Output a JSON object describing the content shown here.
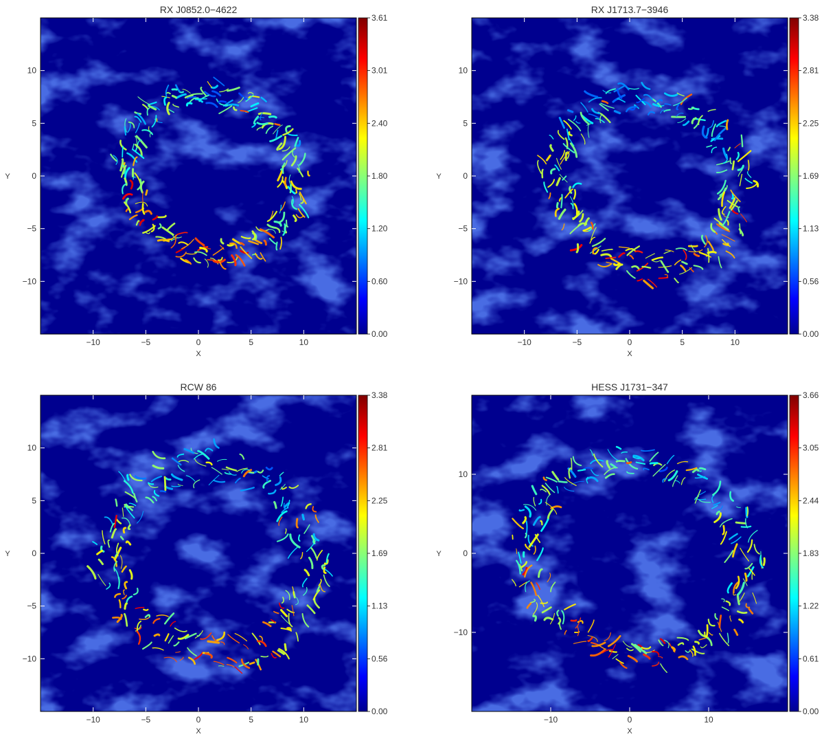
{
  "chart_data": [
    {
      "type": "heatmap",
      "title": "RX J0852.0−4622",
      "xlabel": "X",
      "ylabel": "Y",
      "xlim": [
        -15,
        15
      ],
      "ylim": [
        -15,
        15
      ],
      "xticks": [
        -10,
        -5,
        0,
        5,
        10
      ],
      "xtick_labels": [
        "−10",
        "−5",
        "0",
        "5",
        "10"
      ],
      "yticks": [
        -10,
        -5,
        0,
        5,
        10
      ],
      "ytick_labels": [
        "−10",
        "−5",
        "0",
        "5",
        "10"
      ],
      "colorbar": {
        "min": 0.0,
        "max": 3.61,
        "labels": [
          "0.00",
          "0.60",
          "1.20",
          "1.80",
          "2.40",
          "3.01",
          "3.61"
        ]
      },
      "shell": {
        "center": [
          1.3,
          0.2
        ],
        "radius_x": 7.9,
        "radius_y": 7.4,
        "thickness": 1.6,
        "tilt": -10,
        "peak": 0.9
      },
      "grid": false,
      "colormap": "jet"
    },
    {
      "type": "heatmap",
      "title": "RX J1713.7−3946",
      "xlabel": "X",
      "ylabel": "Y",
      "xlim": [
        -15,
        15
      ],
      "ylim": [
        -15,
        15
      ],
      "xticks": [
        -10,
        -5,
        0,
        5,
        10
      ],
      "xtick_labels": [
        "−10",
        "−5",
        "0",
        "5",
        "10"
      ],
      "yticks": [
        -10,
        -5,
        0,
        5,
        10
      ],
      "ytick_labels": [
        "−10",
        "−5",
        "0",
        "5",
        "10"
      ],
      "colorbar": {
        "min": 0.0,
        "max": 3.38,
        "labels": [
          "0.00",
          "0.56",
          "1.13",
          "1.69",
          "2.25",
          "2.81",
          "3.38"
        ]
      },
      "shell": {
        "center": [
          1.8,
          -0.6
        ],
        "radius_x": 8.7,
        "radius_y": 8.0,
        "thickness": 2.0,
        "tilt": -5,
        "peak": 0.88
      },
      "grid": false,
      "colormap": "jet"
    },
    {
      "type": "heatmap",
      "title": "RCW 86",
      "xlabel": "X",
      "ylabel": "Y",
      "xlim": [
        -15,
        15
      ],
      "ylim": [
        -15,
        15
      ],
      "xticks": [
        -10,
        -5,
        0,
        5,
        10
      ],
      "xtick_labels": [
        "−10",
        "−5",
        "0",
        "5",
        "10"
      ],
      "yticks": [
        -10,
        -5,
        0,
        5,
        10
      ],
      "ytick_labels": [
        "−10",
        "−5",
        "0",
        "5",
        "10"
      ],
      "colorbar": {
        "min": 0.0,
        "max": 3.38,
        "labels": [
          "0.00",
          "0.56",
          "1.13",
          "1.69",
          "2.25",
          "2.81",
          "3.38"
        ]
      },
      "shell": {
        "center": [
          1.2,
          -0.5
        ],
        "radius_x": 9.5,
        "radius_y": 8.9,
        "thickness": 2.2,
        "tilt": -5,
        "peak": 0.88
      },
      "grid": false,
      "colormap": "jet"
    },
    {
      "type": "heatmap",
      "title": "HESS J1731−347",
      "xlabel": "X",
      "ylabel": "Y",
      "xlim": [
        -20,
        20
      ],
      "ylim": [
        -20,
        20
      ],
      "xticks": [
        -10,
        0,
        10
      ],
      "xtick_labels": [
        "−10",
        "0",
        "10"
      ],
      "yticks": [
        -10,
        0,
        10
      ],
      "ytick_labels": [
        "−10",
        "0",
        "10"
      ],
      "colorbar": {
        "min": 0.0,
        "max": 3.66,
        "labels": [
          "0.00",
          "0.61",
          "1.22",
          "1.83",
          "2.44",
          "3.05",
          "3.66"
        ]
      },
      "shell": {
        "center": [
          1.0,
          -0.6
        ],
        "radius_x": 14.0,
        "radius_y": 12.3,
        "thickness": 2.6,
        "tilt": -5,
        "peak": 0.9
      },
      "grid": false,
      "colormap": "jet"
    }
  ]
}
